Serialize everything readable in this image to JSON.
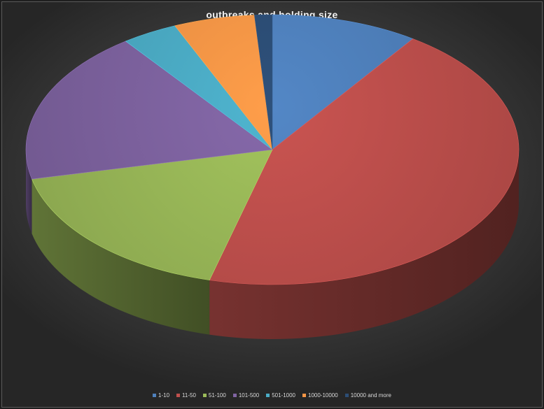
{
  "chart_data": {
    "type": "pie",
    "title": "outbreaks and holding size",
    "categories": [
      "1-10",
      "11-50",
      "51-100",
      "101-500",
      "501-1000",
      "1000-10000",
      "10000 and more"
    ],
    "values": [
      10,
      46,
      18,
      19,
      3.8,
      5.5,
      1.2
    ],
    "colors": [
      "#4f81bd",
      "#c0504d",
      "#9bbb59",
      "#8064a2",
      "#4bacc6",
      "#f79646",
      "#2c4d75"
    ],
    "legend_position": "bottom",
    "style": "3d"
  }
}
